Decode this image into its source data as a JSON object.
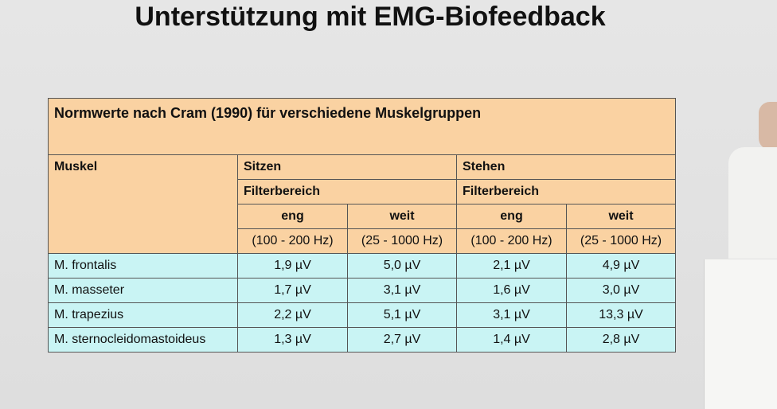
{
  "title": "Unterstützung mit EMG-Biofeedback",
  "table": {
    "caption": "Normwerte nach Cram (1990) für verschiedene Muskelgruppen",
    "header": {
      "muscle": "Muskel",
      "groups": [
        "Sitzen",
        "Stehen"
      ],
      "filter": [
        "Filterbereich",
        "Filterbereich"
      ],
      "bands": [
        "eng",
        "weit",
        "eng",
        "weit"
      ],
      "ranges": [
        "(100 - 200 Hz)",
        "(25 - 1000 Hz)",
        "(100 - 200 Hz)",
        "(25 - 1000 Hz)"
      ]
    },
    "rows": [
      [
        "M. frontalis",
        "1,9 µV",
        "5,0 µV",
        "2,1 µV",
        "4,9 µV"
      ],
      [
        "M. masseter",
        "1,7 µV",
        "3,1 µV",
        "1,6 µV",
        "3,0 µV"
      ],
      [
        "M. trapezius",
        "2,2 µV",
        "5,1 µV",
        "3,1 µV",
        "13,3 µV"
      ],
      [
        "M. sternocleidomastoideus",
        "1,3 µV",
        "2,7 µV",
        "1,4 µV",
        "2,8 µV"
      ]
    ]
  }
}
